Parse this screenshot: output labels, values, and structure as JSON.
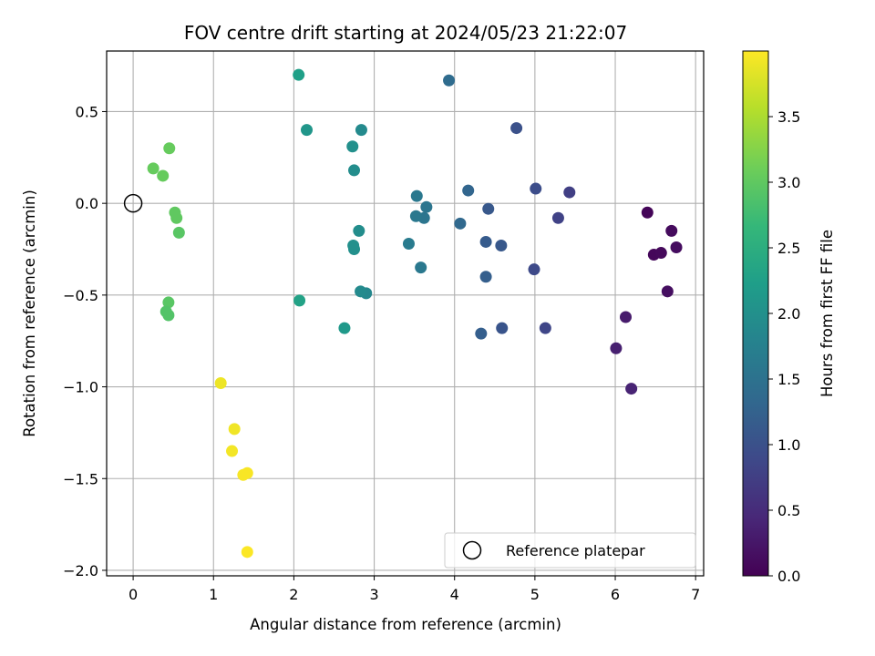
{
  "chart_data": {
    "type": "scatter",
    "title": "FOV centre drift starting at 2024/05/23 21:22:07",
    "xlabel": "Angular distance from reference (arcmin)",
    "ylabel": "Rotation from reference (arcmin)",
    "xlim": [
      -0.33,
      7.1
    ],
    "ylim": [
      -2.03,
      0.83
    ],
    "x_ticks": [
      0,
      1,
      2,
      3,
      4,
      5,
      6,
      7
    ],
    "x_tick_labels": [
      "0",
      "1",
      "2",
      "3",
      "4",
      "5",
      "6",
      "7"
    ],
    "y_ticks": [
      -2.0,
      -1.5,
      -1.0,
      -0.5,
      0.0,
      0.5
    ],
    "y_tick_labels": [
      "−2.0",
      "−1.5",
      "−1.0",
      "−0.5",
      "0.0",
      "0.5"
    ],
    "grid": true,
    "colormap": "viridis",
    "colorbar": {
      "label": "Hours from first FF file",
      "range": [
        0.0,
        4.0
      ],
      "ticks": [
        0.0,
        0.5,
        1.0,
        1.5,
        2.0,
        2.5,
        3.0,
        3.5
      ],
      "tick_labels": [
        "0.0",
        "0.5",
        "1.0",
        "1.5",
        "2.0",
        "2.5",
        "3.0",
        "3.5"
      ]
    },
    "legend": {
      "placement": "lower-right",
      "entries": [
        "Reference platepar"
      ]
    },
    "reference_point": {
      "x": 0.0,
      "y": 0.0,
      "marker": "open-circle",
      "color": "#000000"
    },
    "points": [
      {
        "x": 6.4,
        "y": -0.05,
        "c": 0.05
      },
      {
        "x": 6.48,
        "y": -0.28,
        "c": 0.07
      },
      {
        "x": 6.57,
        "y": -0.27,
        "c": 0.09
      },
      {
        "x": 6.7,
        "y": -0.15,
        "c": 0.11
      },
      {
        "x": 6.76,
        "y": -0.24,
        "c": 0.13
      },
      {
        "x": 6.65,
        "y": -0.48,
        "c": 0.15
      },
      {
        "x": 6.13,
        "y": -0.62,
        "c": 0.3
      },
      {
        "x": 6.01,
        "y": -0.79,
        "c": 0.35
      },
      {
        "x": 6.2,
        "y": -1.01,
        "c": 0.4
      },
      {
        "x": 5.43,
        "y": 0.06,
        "c": 0.75
      },
      {
        "x": 5.29,
        "y": -0.08,
        "c": 0.8
      },
      {
        "x": 5.13,
        "y": -0.68,
        "c": 0.85
      },
      {
        "x": 4.99,
        "y": -0.36,
        "c": 0.9
      },
      {
        "x": 5.01,
        "y": 0.08,
        "c": 0.95
      },
      {
        "x": 4.77,
        "y": 0.41,
        "c": 1.0
      },
      {
        "x": 4.59,
        "y": -0.68,
        "c": 1.05
      },
      {
        "x": 4.58,
        "y": -0.23,
        "c": 1.1
      },
      {
        "x": 4.42,
        "y": -0.03,
        "c": 1.1
      },
      {
        "x": 4.39,
        "y": -0.21,
        "c": 1.15
      },
      {
        "x": 4.39,
        "y": -0.4,
        "c": 1.2
      },
      {
        "x": 4.33,
        "y": -0.71,
        "c": 1.2
      },
      {
        "x": 4.17,
        "y": 0.07,
        "c": 1.3
      },
      {
        "x": 4.07,
        "y": -0.11,
        "c": 1.35
      },
      {
        "x": 3.93,
        "y": 0.67,
        "c": 1.4
      },
      {
        "x": 3.65,
        "y": -0.02,
        "c": 1.55
      },
      {
        "x": 3.62,
        "y": -0.08,
        "c": 1.55
      },
      {
        "x": 3.53,
        "y": 0.04,
        "c": 1.6
      },
      {
        "x": 3.52,
        "y": -0.07,
        "c": 1.6
      },
      {
        "x": 3.58,
        "y": -0.35,
        "c": 1.6
      },
      {
        "x": 3.43,
        "y": -0.22,
        "c": 1.65
      },
      {
        "x": 2.9,
        "y": -0.49,
        "c": 1.85
      },
      {
        "x": 2.83,
        "y": -0.48,
        "c": 1.9
      },
      {
        "x": 2.84,
        "y": 0.4,
        "c": 1.9
      },
      {
        "x": 2.81,
        "y": -0.15,
        "c": 1.95
      },
      {
        "x": 2.75,
        "y": 0.18,
        "c": 1.95
      },
      {
        "x": 2.73,
        "y": 0.31,
        "c": 2.0
      },
      {
        "x": 2.75,
        "y": -0.25,
        "c": 2.0
      },
      {
        "x": 2.74,
        "y": -0.23,
        "c": 2.0
      },
      {
        "x": 2.16,
        "y": 0.4,
        "c": 2.1
      },
      {
        "x": 2.63,
        "y": -0.68,
        "c": 2.15
      },
      {
        "x": 2.06,
        "y": 0.7,
        "c": 2.25
      },
      {
        "x": 2.07,
        "y": -0.53,
        "c": 2.3
      },
      {
        "x": 0.45,
        "y": 0.3,
        "c": 3.05
      },
      {
        "x": 0.25,
        "y": 0.19,
        "c": 3.05
      },
      {
        "x": 0.37,
        "y": 0.15,
        "c": 3.05
      },
      {
        "x": 0.52,
        "y": -0.05,
        "c": 3.0
      },
      {
        "x": 0.54,
        "y": -0.08,
        "c": 3.0
      },
      {
        "x": 0.57,
        "y": -0.16,
        "c": 2.95
      },
      {
        "x": 0.44,
        "y": -0.54,
        "c": 2.95
      },
      {
        "x": 0.41,
        "y": -0.59,
        "c": 2.9
      },
      {
        "x": 0.44,
        "y": -0.61,
        "c": 2.9
      },
      {
        "x": 1.09,
        "y": -0.98,
        "c": 3.9
      },
      {
        "x": 1.26,
        "y": -1.23,
        "c": 3.92
      },
      {
        "x": 1.23,
        "y": -1.35,
        "c": 3.94
      },
      {
        "x": 1.37,
        "y": -1.48,
        "c": 3.96
      },
      {
        "x": 1.42,
        "y": -1.47,
        "c": 3.97
      },
      {
        "x": 1.42,
        "y": -1.9,
        "c": 3.99
      }
    ]
  }
}
